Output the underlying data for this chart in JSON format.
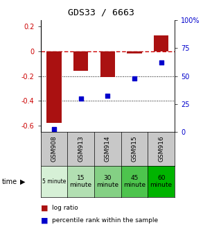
{
  "title": "GDS33 / 6663",
  "samples": [
    "GSM908",
    "GSM913",
    "GSM914",
    "GSM915",
    "GSM916"
  ],
  "time_labels": [
    "5 minute",
    "15\nminute",
    "30\nminute",
    "45\nminute",
    "60\nminute"
  ],
  "time_bg_colors": [
    "#d6f0d6",
    "#b2dfb2",
    "#84d084",
    "#4dc44d",
    "#00b300"
  ],
  "sample_bg_color": "#c8c8c8",
  "log_ratio": [
    -0.58,
    -0.16,
    -0.21,
    -0.02,
    0.13
  ],
  "percentile_rank": [
    2,
    30,
    32,
    48,
    62
  ],
  "bar_color": "#aa1111",
  "dot_color": "#0000cc",
  "ylim_left": [
    -0.65,
    0.25
  ],
  "ylim_right": [
    0,
    100
  ],
  "yticks_left": [
    0.2,
    0.0,
    -0.2,
    -0.4,
    -0.6
  ],
  "yticks_right": [
    100,
    75,
    50,
    25,
    0
  ],
  "dotline_y": [
    -0.2,
    -0.4
  ],
  "bar_width": 0.55
}
